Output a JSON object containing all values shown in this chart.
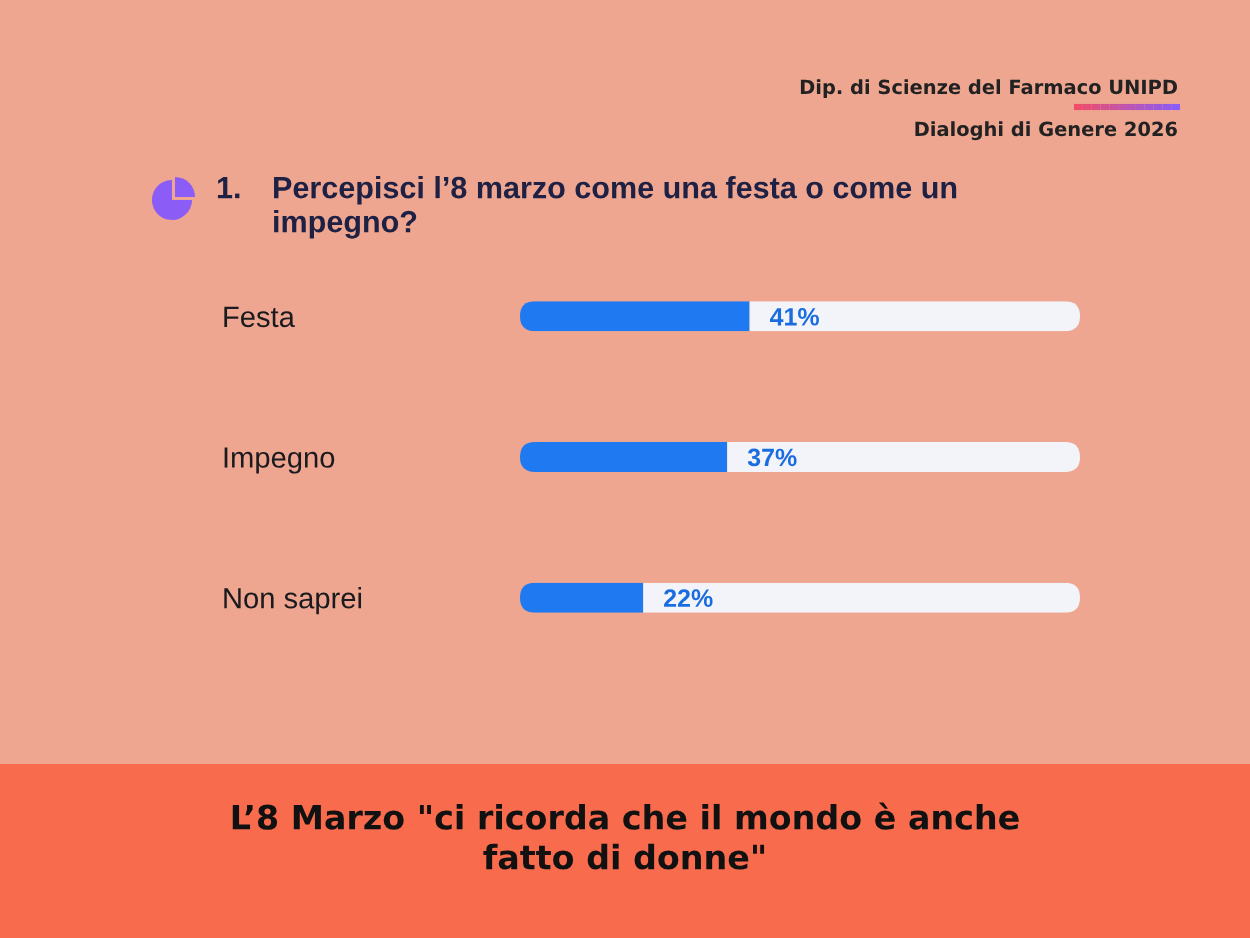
{
  "chart_data": {
    "type": "bar",
    "orientation": "horizontal",
    "stacked": true,
    "title": "Percepisci l’8 marzo come una festa o come un impegno?",
    "annotations": [
      "1.",
      "Dip. di Scienze del Farmaco UNIPD",
      "Dialoghi di Genere 2026",
      "L’8 Marzo \"ci ricorda che il mondo è anche fatto di donne\""
    ],
    "categories": [
      "Festa",
      "Impegno",
      "Non saprei"
    ],
    "series": [
      {
        "color": "#1f7af2",
        "values": [
          41,
          37,
          22
        ],
        "value_labels": [
          "41%",
          "37%",
          "22%"
        ]
      },
      {
        "color": "#f3f4f9",
        "values": [
          59,
          63,
          78
        ]
      }
    ],
    "xlim": [
      0,
      100
    ],
    "tick_labels": "y"
  }
}
